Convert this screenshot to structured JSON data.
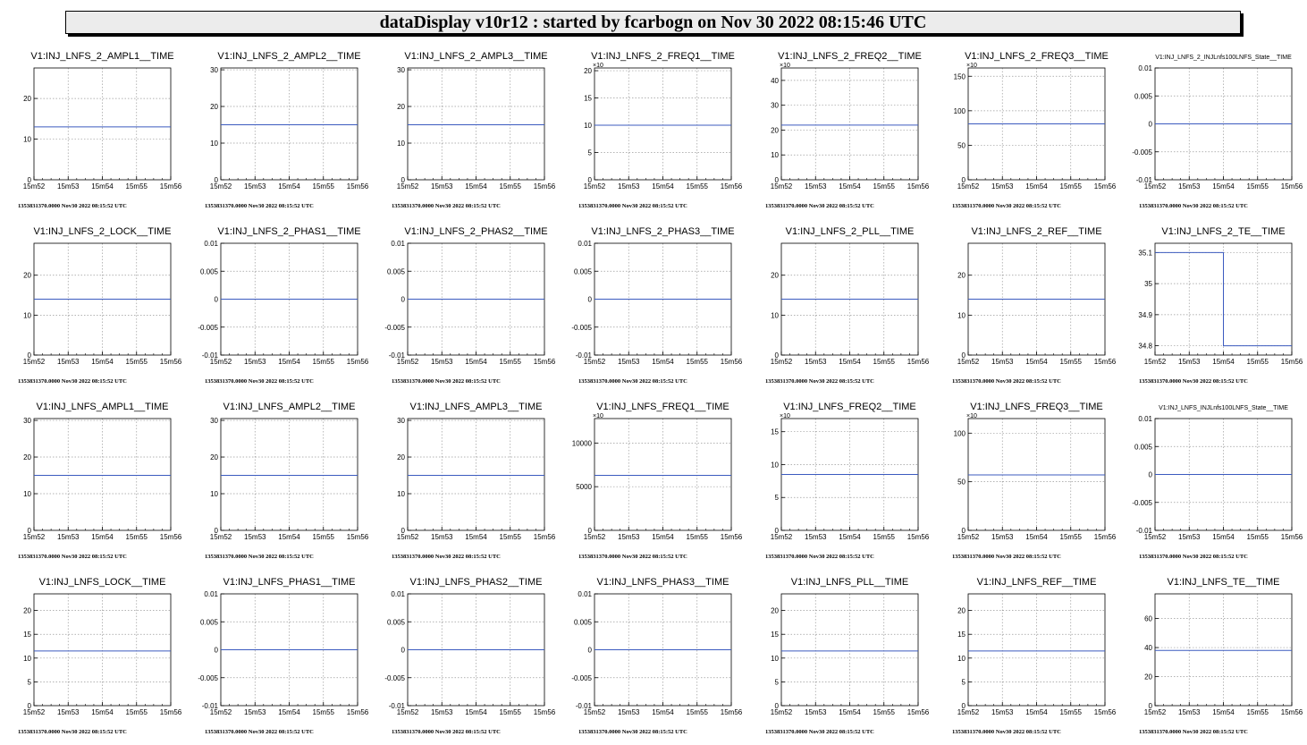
{
  "header": {
    "title": "dataDisplay v10r12 : started by fcarbogn on Nov 30 2022 08:15:46 UTC"
  },
  "chart_data": [
    {
      "type": "line",
      "title": "V1:INJ_LNFS_2_AMPL1__TIME",
      "x": [
        "15m52",
        "15m53",
        "15m54",
        "15m55",
        "15m56"
      ],
      "y_ticks": [
        0,
        10,
        20
      ],
      "ylim": [
        0,
        27.5
      ],
      "values": [
        13,
        13,
        13,
        13,
        13
      ],
      "footer": "1353831370.0000 Nov30 2022 08:15:52 UTC"
    },
    {
      "type": "line",
      "title": "V1:INJ_LNFS_2_AMPL2__TIME",
      "x": [
        "15m52",
        "15m53",
        "15m54",
        "15m55",
        "15m56"
      ],
      "y_ticks": [
        0,
        10,
        20,
        30
      ],
      "ylim": [
        0,
        30.5
      ],
      "values": [
        15,
        15,
        15,
        15,
        15
      ],
      "footer": "1353831370.0000 Nov30 2022 08:15:52 UTC"
    },
    {
      "type": "line",
      "title": "V1:INJ_LNFS_2_AMPL3__TIME",
      "x": [
        "15m52",
        "15m53",
        "15m54",
        "15m55",
        "15m56"
      ],
      "y_ticks": [
        0,
        10,
        20,
        30
      ],
      "ylim": [
        0,
        30.5
      ],
      "values": [
        15,
        15,
        15,
        15,
        15
      ],
      "footer": "1353831370.0000 Nov30 2022 08:15:52 UTC"
    },
    {
      "type": "line",
      "title": "V1:INJ_LNFS_2_FREQ1__TIME",
      "exponent": "×10",
      "x": [
        "15m52",
        "15m53",
        "15m54",
        "15m55",
        "15m56"
      ],
      "y_ticks": [
        0,
        5,
        10,
        15,
        20
      ],
      "ylim": [
        0,
        20.5
      ],
      "values": [
        10,
        10,
        10,
        10,
        10
      ],
      "footer": "1353831370.0000 Nov30 2022 08:15:52 UTC"
    },
    {
      "type": "line",
      "title": "V1:INJ_LNFS_2_FREQ2__TIME",
      "exponent": "×10",
      "x": [
        "15m52",
        "15m53",
        "15m54",
        "15m55",
        "15m56"
      ],
      "y_ticks": [
        0,
        10,
        20,
        30,
        40
      ],
      "ylim": [
        0,
        45
      ],
      "values": [
        22,
        22,
        22,
        22,
        22
      ],
      "footer": "1353831370.0000 Nov30 2022 08:15:52 UTC"
    },
    {
      "type": "line",
      "title": "V1:INJ_LNFS_2_FREQ3__TIME",
      "exponent": "×10",
      "x": [
        "15m52",
        "15m53",
        "15m54",
        "15m55",
        "15m56"
      ],
      "y_ticks": [
        0,
        50,
        100,
        150
      ],
      "ylim": [
        0,
        162
      ],
      "values": [
        81,
        81,
        81,
        81,
        81
      ],
      "footer": "1353831370.0000 Nov30 2022 08:15:52 UTC"
    },
    {
      "type": "line",
      "title": "V1:INJ_LNFS_2_INJLnfs100LNFS_State__TIME",
      "x": [
        "15m52",
        "15m53",
        "15m54",
        "15m55",
        "15m56"
      ],
      "y_ticks": [
        -0.01,
        -0.005,
        0,
        0.005,
        0.01
      ],
      "ylim": [
        -0.01,
        0.01
      ],
      "values": [
        0,
        0,
        0,
        0,
        0
      ],
      "footer": "1353831370.0000 Nov30 2022 08:15:52 UTC"
    },
    {
      "type": "line",
      "title": "V1:INJ_LNFS_2_LOCK__TIME",
      "x": [
        "15m52",
        "15m53",
        "15m54",
        "15m55",
        "15m56"
      ],
      "y_ticks": [
        0,
        10,
        20
      ],
      "ylim": [
        0,
        28
      ],
      "values": [
        14,
        14,
        14,
        14,
        14
      ],
      "footer": "1353831370.0000 Nov30 2022 08:15:52 UTC"
    },
    {
      "type": "line",
      "title": "V1:INJ_LNFS_2_PHAS1__TIME",
      "x": [
        "15m52",
        "15m53",
        "15m54",
        "15m55",
        "15m56"
      ],
      "y_ticks": [
        -0.01,
        -0.005,
        0,
        0.005,
        0.01
      ],
      "ylim": [
        -0.01,
        0.01
      ],
      "values": [
        0,
        0,
        0,
        0,
        0
      ],
      "footer": "1353831370.0000 Nov30 2022 08:15:52 UTC"
    },
    {
      "type": "line",
      "title": "V1:INJ_LNFS_2_PHAS2__TIME",
      "x": [
        "15m52",
        "15m53",
        "15m54",
        "15m55",
        "15m56"
      ],
      "y_ticks": [
        -0.01,
        -0.005,
        0,
        0.005,
        0.01
      ],
      "ylim": [
        -0.01,
        0.01
      ],
      "values": [
        0,
        0,
        0,
        0,
        0
      ],
      "footer": "1353831370.0000 Nov30 2022 08:15:52 UTC"
    },
    {
      "type": "line",
      "title": "V1:INJ_LNFS_2_PHAS3__TIME",
      "x": [
        "15m52",
        "15m53",
        "15m54",
        "15m55",
        "15m56"
      ],
      "y_ticks": [
        -0.01,
        -0.005,
        0,
        0.005,
        0.01
      ],
      "ylim": [
        -0.01,
        0.01
      ],
      "values": [
        0,
        0,
        0,
        0,
        0
      ],
      "footer": "1353831370.0000 Nov30 2022 08:15:52 UTC"
    },
    {
      "type": "line",
      "title": "V1:INJ_LNFS_2_PLL__TIME",
      "x": [
        "15m52",
        "15m53",
        "15m54",
        "15m55",
        "15m56"
      ],
      "y_ticks": [
        0,
        10,
        20
      ],
      "ylim": [
        0,
        28
      ],
      "values": [
        14,
        14,
        14,
        14,
        14
      ],
      "footer": "1353831370.0000 Nov30 2022 08:15:52 UTC"
    },
    {
      "type": "line",
      "title": "V1:INJ_LNFS_2_REF__TIME",
      "x": [
        "15m52",
        "15m53",
        "15m54",
        "15m55",
        "15m56"
      ],
      "y_ticks": [
        0,
        10,
        20
      ],
      "ylim": [
        0,
        28
      ],
      "values": [
        14,
        14,
        14,
        14,
        14
      ],
      "footer": "1353831370.0000 Nov30 2022 08:15:52 UTC"
    },
    {
      "type": "line",
      "title": "V1:INJ_LNFS_2_TE__TIME",
      "x": [
        "15m52",
        "15m53",
        "15m54",
        "15m55",
        "15m56"
      ],
      "y_ticks": [
        34.8,
        34.9,
        35,
        35.1
      ],
      "tick_labels": [
        "34.8",
        "34.9",
        "35",
        "35.1"
      ],
      "ylim": [
        34.77,
        35.13
      ],
      "values": [
        35.1,
        35.1,
        34.8,
        34.8,
        34.8
      ],
      "step": true,
      "footer": "1353831370.0000 Nov30 2022 08:15:52 UTC"
    },
    {
      "type": "line",
      "title": "V1:INJ_LNFS_AMPL1__TIME",
      "x": [
        "15m52",
        "15m53",
        "15m54",
        "15m55",
        "15m56"
      ],
      "y_ticks": [
        0,
        10,
        20,
        30
      ],
      "ylim": [
        0,
        30.5
      ],
      "values": [
        15,
        15,
        15,
        15,
        15
      ],
      "footer": "1353831370.0000 Nov30 2022 08:15:52 UTC"
    },
    {
      "type": "line",
      "title": "V1:INJ_LNFS_AMPL2__TIME",
      "x": [
        "15m52",
        "15m53",
        "15m54",
        "15m55",
        "15m56"
      ],
      "y_ticks": [
        0,
        10,
        20,
        30
      ],
      "ylim": [
        0,
        30.5
      ],
      "values": [
        15,
        15,
        15,
        15,
        15
      ],
      "footer": "1353831370.0000 Nov30 2022 08:15:52 UTC"
    },
    {
      "type": "line",
      "title": "V1:INJ_LNFS_AMPL3__TIME",
      "x": [
        "15m52",
        "15m53",
        "15m54",
        "15m55",
        "15m56"
      ],
      "y_ticks": [
        0,
        10,
        20,
        30
      ],
      "ylim": [
        0,
        30.5
      ],
      "values": [
        15,
        15,
        15,
        15,
        15
      ],
      "footer": "1353831370.0000 Nov30 2022 08:15:52 UTC"
    },
    {
      "type": "line",
      "title": "V1:INJ_LNFS_FREQ1__TIME",
      "exponent": "×10",
      "x": [
        "15m52",
        "15m53",
        "15m54",
        "15m55",
        "15m56"
      ],
      "y_ticks": [
        0,
        5000,
        10000
      ],
      "ylim": [
        0,
        12800
      ],
      "values": [
        6300,
        6300,
        6300,
        6300,
        6300
      ],
      "footer": "1353831370.0000 Nov30 2022 08:15:52 UTC"
    },
    {
      "type": "line",
      "title": "V1:INJ_LNFS_FREQ2__TIME",
      "exponent": "×10",
      "x": [
        "15m52",
        "15m53",
        "15m54",
        "15m55",
        "15m56"
      ],
      "y_ticks": [
        0,
        5,
        10,
        15
      ],
      "ylim": [
        0,
        17
      ],
      "values": [
        8.5,
        8.5,
        8.5,
        8.5,
        8.5
      ],
      "footer": "1353831370.0000 Nov30 2022 08:15:52 UTC"
    },
    {
      "type": "line",
      "title": "V1:INJ_LNFS_FREQ3__TIME",
      "exponent": "×10",
      "x": [
        "15m52",
        "15m53",
        "15m54",
        "15m55",
        "15m56"
      ],
      "y_ticks": [
        0,
        50,
        100
      ],
      "ylim": [
        0,
        115
      ],
      "values": [
        57,
        57,
        57,
        57,
        57
      ],
      "footer": "1353831370.0000 Nov30 2022 08:15:52 UTC"
    },
    {
      "type": "line",
      "title": "V1:INJ_LNFS_INJLnfs100LNFS_State__TIME",
      "x": [
        "15m52",
        "15m53",
        "15m54",
        "15m55",
        "15m56"
      ],
      "y_ticks": [
        -0.01,
        -0.005,
        0,
        0.005,
        0.01
      ],
      "ylim": [
        -0.01,
        0.01
      ],
      "values": [
        0,
        0,
        0,
        0,
        0
      ],
      "footer": "1353831370.0000 Nov30 2022 08:15:52 UTC"
    },
    {
      "type": "line",
      "title": "V1:INJ_LNFS_LOCK__TIME",
      "x": [
        "15m52",
        "15m53",
        "15m54",
        "15m55",
        "15m56"
      ],
      "y_ticks": [
        0,
        5,
        10,
        15,
        20
      ],
      "ylim": [
        0,
        23.5
      ],
      "values": [
        11.5,
        11.5,
        11.5,
        11.5,
        11.5
      ],
      "footer": "1353831370.0000 Nov30 2022 08:15:52 UTC"
    },
    {
      "type": "line",
      "title": "V1:INJ_LNFS_PHAS1__TIME",
      "x": [
        "15m52",
        "15m53",
        "15m54",
        "15m55",
        "15m56"
      ],
      "y_ticks": [
        -0.01,
        -0.005,
        0,
        0.005,
        0.01
      ],
      "ylim": [
        -0.01,
        0.01
      ],
      "values": [
        0,
        0,
        0,
        0,
        0
      ],
      "footer": "1353831370.0000 Nov30 2022 08:15:52 UTC"
    },
    {
      "type": "line",
      "title": "V1:INJ_LNFS_PHAS2__TIME",
      "x": [
        "15m52",
        "15m53",
        "15m54",
        "15m55",
        "15m56"
      ],
      "y_ticks": [
        -0.01,
        -0.005,
        0,
        0.005,
        0.01
      ],
      "ylim": [
        -0.01,
        0.01
      ],
      "values": [
        0,
        0,
        0,
        0,
        0
      ],
      "footer": "1353831370.0000 Nov30 2022 08:15:52 UTC"
    },
    {
      "type": "line",
      "title": "V1:INJ_LNFS_PHAS3__TIME",
      "x": [
        "15m52",
        "15m53",
        "15m54",
        "15m55",
        "15m56"
      ],
      "y_ticks": [
        -0.01,
        -0.005,
        0,
        0.005,
        0.01
      ],
      "ylim": [
        -0.01,
        0.01
      ],
      "values": [
        0,
        0,
        0,
        0,
        0
      ],
      "footer": "1353831370.0000 Nov30 2022 08:15:52 UTC"
    },
    {
      "type": "line",
      "title": "V1:INJ_LNFS_PLL__TIME",
      "x": [
        "15m52",
        "15m53",
        "15m54",
        "15m55",
        "15m56"
      ],
      "y_ticks": [
        0,
        5,
        10,
        15,
        20
      ],
      "ylim": [
        0,
        23.5
      ],
      "values": [
        11.5,
        11.5,
        11.5,
        11.5,
        11.5
      ],
      "footer": "1353831370.0000 Nov30 2022 08:15:52 UTC"
    },
    {
      "type": "line",
      "title": "V1:INJ_LNFS_REF__TIME",
      "x": [
        "15m52",
        "15m53",
        "15m54",
        "15m55",
        "15m56"
      ],
      "y_ticks": [
        0,
        5,
        10,
        15,
        20
      ],
      "ylim": [
        0,
        23.5
      ],
      "values": [
        11.5,
        11.5,
        11.5,
        11.5,
        11.5
      ],
      "footer": "1353831370.0000 Nov30 2022 08:15:52 UTC"
    },
    {
      "type": "line",
      "title": "V1:INJ_LNFS_TE__TIME",
      "x": [
        "15m52",
        "15m53",
        "15m54",
        "15m55",
        "15m56"
      ],
      "y_ticks": [
        0,
        20,
        40,
        60
      ],
      "ylim": [
        0,
        77
      ],
      "values": [
        38,
        38,
        38,
        38,
        38
      ],
      "footer": "1353831370.0000 Nov30 2022 08:15:52 UTC"
    }
  ],
  "style": {
    "line_color": "#3c5bbf",
    "grid_color": "#9a9a9a",
    "axis_color": "#000000"
  }
}
